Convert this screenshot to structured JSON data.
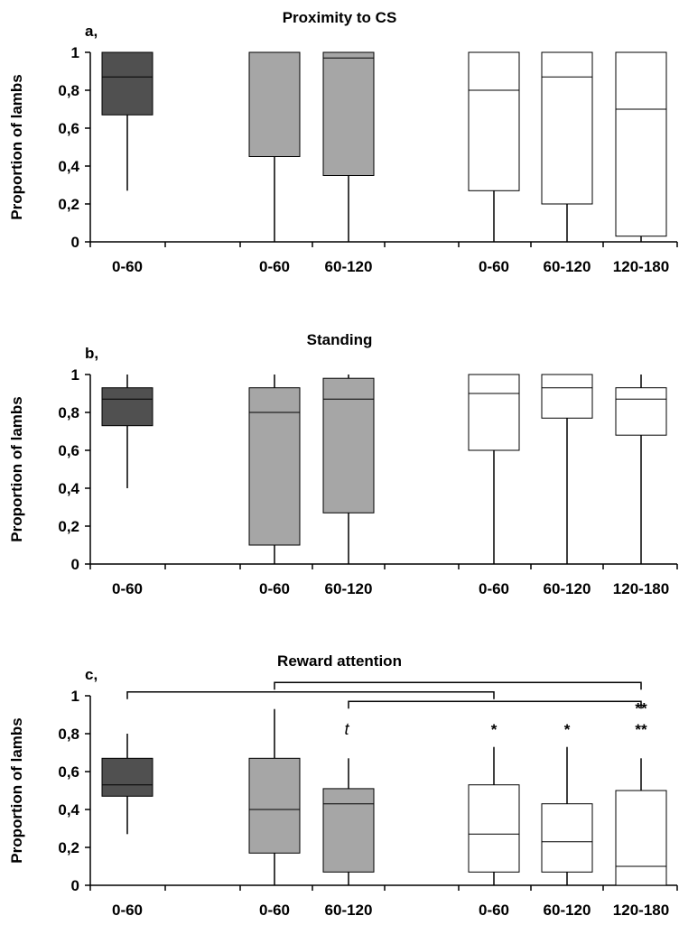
{
  "colors": {
    "group_0": "#505050",
    "group_1": "#a6a6a6",
    "group_2": "#ffffff",
    "stroke": "#000000"
  },
  "chart_data": [
    {
      "type": "box",
      "panel_letter": "a,",
      "title": "Proximity to CS",
      "ylabel": "Proportion of lambs",
      "ylim": [
        0,
        1
      ],
      "yticks": [
        "0",
        "0,2",
        "0,4",
        "0,6",
        "0,8",
        "1"
      ],
      "categories": [
        "0-60",
        "0-60",
        "60-120",
        "0-60",
        "60-120",
        "120-180"
      ],
      "boxes": [
        {
          "group": 0,
          "min": 0.27,
          "q1": 0.67,
          "median": 0.87,
          "q3": 1.0,
          "max": 1.0
        },
        {
          "group": 1,
          "min": 0.0,
          "q1": 0.45,
          "median": 1.0,
          "q3": 1.0,
          "max": 1.0
        },
        {
          "group": 1,
          "min": 0.0,
          "q1": 0.35,
          "median": 0.97,
          "q3": 1.0,
          "max": 1.0
        },
        {
          "group": 2,
          "min": 0.0,
          "q1": 0.27,
          "median": 0.8,
          "q3": 1.0,
          "max": 1.0
        },
        {
          "group": 2,
          "min": 0.0,
          "q1": 0.2,
          "median": 0.87,
          "q3": 1.0,
          "max": 1.0
        },
        {
          "group": 2,
          "min": 0.0,
          "q1": 0.03,
          "median": 0.7,
          "q3": 1.0,
          "max": 1.0
        }
      ],
      "annotations": []
    },
    {
      "type": "box",
      "panel_letter": "b,",
      "title": "Standing",
      "ylabel": "Proportion of lambs",
      "ylim": [
        0,
        1
      ],
      "yticks": [
        "0",
        "0,2",
        "0,4",
        "0,6",
        "0,8",
        "1"
      ],
      "categories": [
        "0-60",
        "0-60",
        "60-120",
        "0-60",
        "60-120",
        "120-180"
      ],
      "boxes": [
        {
          "group": 0,
          "min": 0.4,
          "q1": 0.73,
          "median": 0.87,
          "q3": 0.93,
          "max": 1.0
        },
        {
          "group": 1,
          "min": 0.0,
          "q1": 0.1,
          "median": 0.8,
          "q3": 0.93,
          "max": 1.0
        },
        {
          "group": 1,
          "min": 0.0,
          "q1": 0.27,
          "median": 0.87,
          "q3": 0.98,
          "max": 1.0
        },
        {
          "group": 2,
          "min": 0.0,
          "q1": 0.6,
          "median": 0.9,
          "q3": 1.0,
          "max": 1.0
        },
        {
          "group": 2,
          "min": 0.0,
          "q1": 0.77,
          "median": 0.93,
          "q3": 1.0,
          "max": 1.0
        },
        {
          "group": 2,
          "min": 0.0,
          "q1": 0.68,
          "median": 0.87,
          "q3": 0.93,
          "max": 1.0
        }
      ],
      "annotations": []
    },
    {
      "type": "box",
      "panel_letter": "c,",
      "title": "Reward attention",
      "ylabel": "Proportion of lambs",
      "ylim": [
        0,
        1
      ],
      "yticks": [
        "0",
        "0,2",
        "0,4",
        "0,6",
        "0,8",
        "1"
      ],
      "categories": [
        "0-60",
        "0-60",
        "60-120",
        "0-60",
        "60-120",
        "120-180"
      ],
      "boxes": [
        {
          "group": 0,
          "min": 0.27,
          "q1": 0.47,
          "median": 0.53,
          "q3": 0.67,
          "max": 0.8
        },
        {
          "group": 1,
          "min": 0.0,
          "q1": 0.17,
          "median": 0.4,
          "q3": 0.67,
          "max": 0.93
        },
        {
          "group": 1,
          "min": 0.0,
          "q1": 0.07,
          "median": 0.43,
          "q3": 0.51,
          "max": 0.67
        },
        {
          "group": 2,
          "min": 0.0,
          "q1": 0.07,
          "median": 0.27,
          "q3": 0.53,
          "max": 0.73
        },
        {
          "group": 2,
          "min": 0.0,
          "q1": 0.07,
          "median": 0.23,
          "q3": 0.43,
          "max": 0.73
        },
        {
          "group": 2,
          "min": 0.0,
          "q1": 0.0,
          "median": 0.1,
          "q3": 0.5,
          "max": 0.67
        }
      ],
      "significance_brackets": [
        {
          "from": 1,
          "to": 5,
          "y": 1.07,
          "label": "**",
          "label_y": 0.93
        },
        {
          "from": 0,
          "to": 3,
          "y": 1.02,
          "label": "*",
          "label_y": 0.82
        },
        {
          "from": 2,
          "to": 5,
          "y": 0.97,
          "label": "**",
          "label_y": 0.82
        }
      ],
      "annotations": [
        {
          "category": 2,
          "label": "t",
          "italic": true,
          "y": 0.82,
          "dx": -2
        },
        {
          "category": 4,
          "label": "*",
          "italic": false,
          "y": 0.82,
          "dx": 0
        }
      ]
    }
  ]
}
